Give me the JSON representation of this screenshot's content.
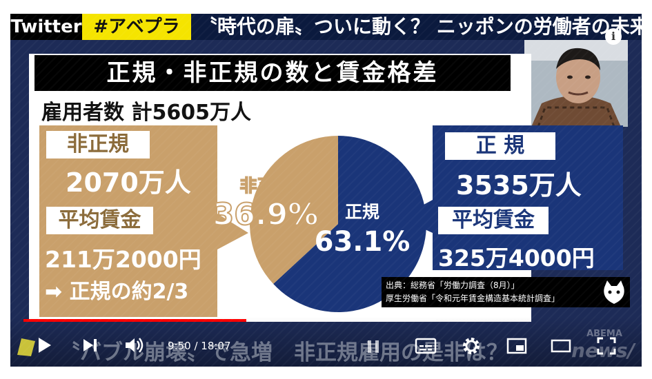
{
  "banner": {
    "twitter": "Twitter",
    "hashtag": "#アベプラ",
    "headline": "〝時代の扉〟ついに動く？ ニッポンの労働者の未来"
  },
  "board": {
    "title": "正規・非正規の数と賃金格差",
    "employees": "雇用者数  計5605万人"
  },
  "non_regular": {
    "label": "非正規",
    "count": "2070万人",
    "wage_label": "平均賃金",
    "wage": "211万2000円",
    "note": "➡ 正規の約2/3"
  },
  "regular": {
    "label": "正 規",
    "count": "3535万人",
    "wage_label": "平均賃金",
    "wage": "325万4000円"
  },
  "chart_data": {
    "type": "pie",
    "categories": [
      "非正規",
      "正規"
    ],
    "values": [
      36.9,
      63.1
    ],
    "labels": [
      "36.9%",
      "63.1%"
    ],
    "colors": [
      "#c9a06b",
      "#1a3579"
    ]
  },
  "source": {
    "line1": "出典：総務省「労働力調査（8月）」",
    "line2": "厚生労働省「令和元年賃金構造基本統計調査」"
  },
  "player": {
    "time": "9:50 / 18:07",
    "progress": 0.54,
    "bottom_caption": "〝バブル崩壊〟で急増　非正規雇用の是非は？"
  },
  "icons": {
    "info": "info-icon",
    "play": "play-icon",
    "next": "next-icon",
    "volume": "volume-icon",
    "pause_overlay": "pause-icon",
    "subtitles": "subtitles-icon",
    "settings": "gear-icon",
    "miniplayer": "miniplayer-icon",
    "theater": "theater-icon",
    "fullscreen": "fullscreen-icon"
  }
}
